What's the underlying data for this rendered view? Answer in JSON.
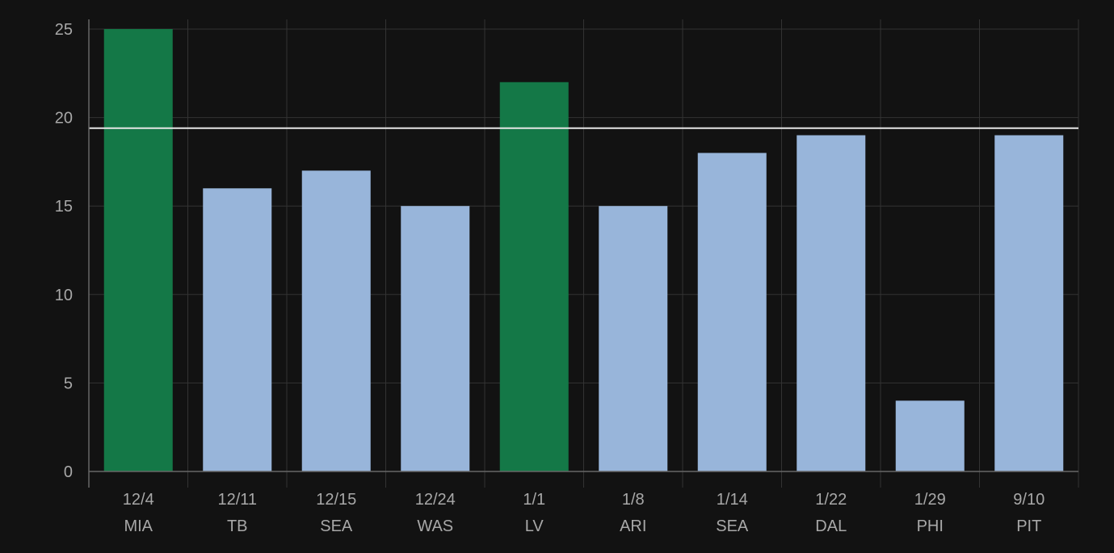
{
  "chart_data": {
    "type": "bar",
    "categories": [
      {
        "date": "12/4",
        "team": "MIA"
      },
      {
        "date": "12/11",
        "team": "TB"
      },
      {
        "date": "12/15",
        "team": "SEA"
      },
      {
        "date": "12/24",
        "team": "WAS"
      },
      {
        "date": "1/1",
        "team": "LV"
      },
      {
        "date": "1/8",
        "team": "ARI"
      },
      {
        "date": "1/14",
        "team": "SEA"
      },
      {
        "date": "1/22",
        "team": "DAL"
      },
      {
        "date": "1/29",
        "team": "PHI"
      },
      {
        "date": "9/10",
        "team": "PIT"
      }
    ],
    "values": [
      25,
      16,
      17,
      15,
      22,
      15,
      18,
      19,
      4,
      19
    ],
    "highlighted": [
      true,
      false,
      false,
      false,
      true,
      false,
      false,
      false,
      false,
      false
    ],
    "reference_line": 19.4,
    "ylim": [
      0,
      25
    ],
    "yticks": [
      0,
      5,
      10,
      15,
      20,
      25
    ],
    "grid": true,
    "title": "",
    "xlabel": "",
    "ylabel": "",
    "colors": {
      "background": "#121212",
      "bar_default": "#98b5da",
      "bar_highlight": "#147847",
      "reference_line": "#e6e6e6",
      "grid": "#333333",
      "axis": "#666666",
      "tick_text": "#a8a8a8"
    }
  }
}
